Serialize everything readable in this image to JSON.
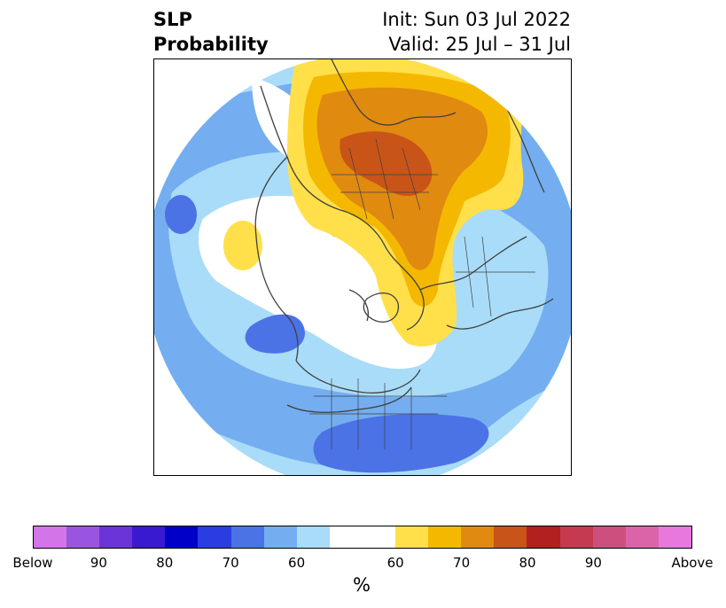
{
  "title": {
    "left_line1": "SLP",
    "left_line2": "Probability",
    "right_line1": "Init: Sun 03 Jul 2022",
    "right_line2": "Valid: 25 Jul – 31 Jul"
  },
  "colorbar": {
    "unit_label": "%",
    "ticks": [
      "Below",
      "90",
      "80",
      "70",
      "60",
      "60",
      "70",
      "80",
      "90",
      "Above"
    ],
    "colors": [
      "#d374e8",
      "#9a55e0",
      "#6a35d8",
      "#3a1ad0",
      "#0000c8",
      "#2a3de0",
      "#4b73e6",
      "#74aef0",
      "#a9dcf8",
      "#ffffff",
      "#ffe04a",
      "#f5b800",
      "#e08a10",
      "#c95418",
      "#b22020",
      "#c43a50",
      "#cc4f7e",
      "#db64a8",
      "#e878dc"
    ]
  },
  "map": {
    "projection": "north-polar",
    "variable": "SLP probability",
    "colors": {
      "light_blue": "#a9dcf8",
      "mid_blue": "#74aef0",
      "deep_blue": "#4b73e6",
      "yellow": "#ffe04a",
      "gold": "#f5b800",
      "orange": "#e08a10",
      "dark_orange": "#c95418",
      "coast": "#404040"
    }
  }
}
